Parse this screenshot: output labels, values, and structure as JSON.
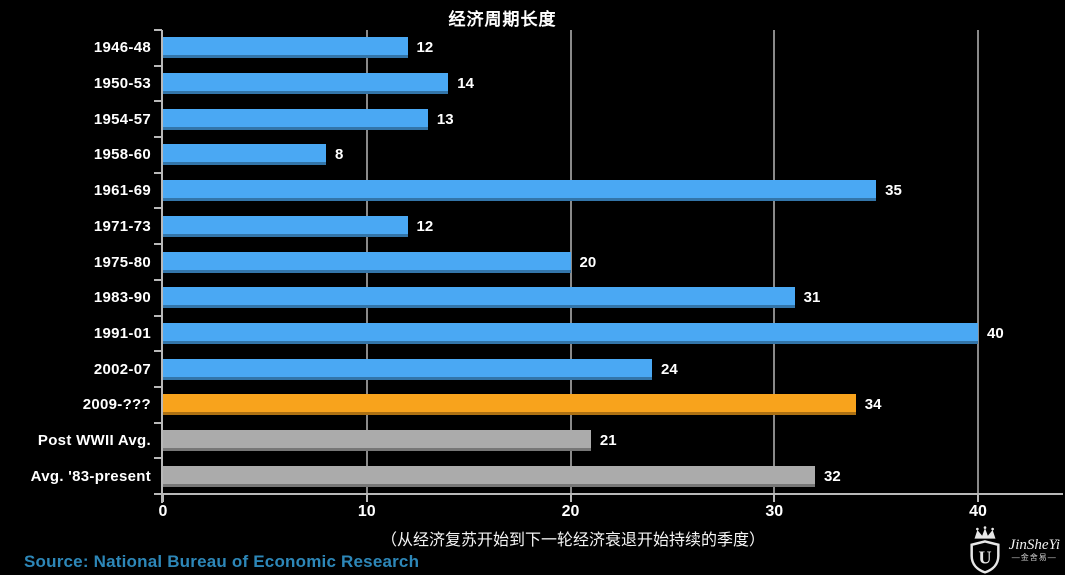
{
  "title": "经济周期长度",
  "caption": "（从经济复苏开始到下一轮经济衰退开始持续的季度）",
  "source": "Source: National Bureau of Economic Research",
  "watermark": {
    "brand": "JinSheYi",
    "brand_cn": "—金舍易—"
  },
  "colors": {
    "background": "#000000",
    "bar_blue": "#4aa8f3",
    "bar_orange": "#f8a31c",
    "bar_gray": "#ababab",
    "grid": "#8a8a8a",
    "axis": "#b8b8b8",
    "label_text": "#ffffff",
    "source_text": "#2d87b8"
  },
  "chart_data": {
    "type": "bar",
    "orientation": "horizontal",
    "title": "经济周期长度",
    "categories": [
      "1946-48",
      "1950-53",
      "1954-57",
      "1958-60",
      "1961-69",
      "1971-73",
      "1975-80",
      "1983-90",
      "1991-01",
      "2002-07",
      "2009-???",
      "Post WWII Avg.",
      "Avg. '83-present"
    ],
    "values": [
      12,
      14,
      13,
      8,
      35,
      12,
      20,
      31,
      40,
      24,
      34,
      21,
      32
    ],
    "bar_color_keys": [
      "blue",
      "blue",
      "blue",
      "blue",
      "blue",
      "blue",
      "blue",
      "blue",
      "blue",
      "blue",
      "orange",
      "gray",
      "gray"
    ],
    "x_ticks": [
      0,
      10,
      20,
      30,
      40
    ],
    "xlim": [
      0,
      44
    ],
    "grid": true,
    "legend": "none",
    "value_labels": "outside-end",
    "caption": "（从经济复苏开始到下一轮经济衰退开始持续的季度）",
    "source": "Source: National Bureau of Economic Research"
  }
}
